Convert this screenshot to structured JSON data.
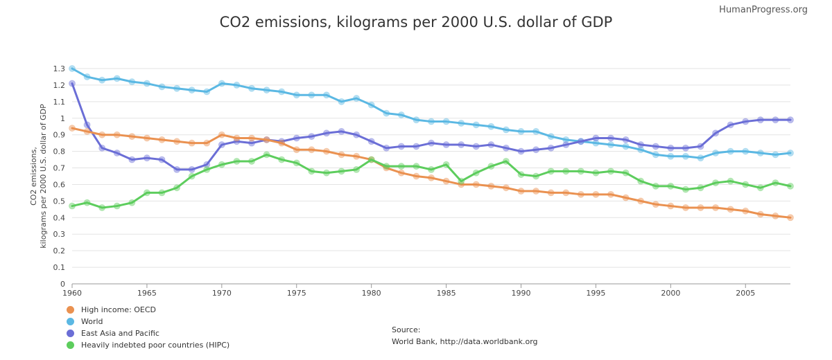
{
  "credit": "HumanProgress.org",
  "source": {
    "label": "Source:",
    "text": "World Bank, http://data.worldbank.org"
  },
  "chart_data": {
    "type": "line",
    "title": "CO2 emissions, kilograms per 2000 U.S. dollar of GDP",
    "ylabel_lines": [
      "CO2 emissions,",
      "kilograms per 2000 U.S. dollar of GDP"
    ],
    "xlabel": "",
    "xlim": [
      1960,
      2008
    ],
    "ylim": [
      0,
      1.3
    ],
    "x_ticks": [
      1960,
      1965,
      1970,
      1975,
      1980,
      1985,
      1990,
      1995,
      2000,
      2005
    ],
    "y_ticks": [
      0,
      0.1,
      0.2,
      0.3,
      0.4,
      0.5,
      0.6,
      0.7,
      0.8,
      0.9,
      1,
      1.1,
      1.2,
      1.3
    ],
    "y_tick_labels": [
      "0",
      "0.1",
      "0.2",
      "0.3",
      "0.4",
      "0.5",
      "0.6",
      "0.7",
      "0.8",
      "0.9",
      "1",
      "1.1",
      "1.2",
      "1.3"
    ],
    "grid": true,
    "legend_position": "bottom-left",
    "x": [
      1960,
      1961,
      1962,
      1963,
      1964,
      1965,
      1966,
      1967,
      1968,
      1969,
      1970,
      1971,
      1972,
      1973,
      1974,
      1975,
      1976,
      1977,
      1978,
      1979,
      1980,
      1981,
      1982,
      1983,
      1984,
      1985,
      1986,
      1987,
      1988,
      1989,
      1990,
      1991,
      1992,
      1993,
      1994,
      1995,
      1996,
      1997,
      1998,
      1999,
      2000,
      2001,
      2002,
      2003,
      2004,
      2005,
      2006,
      2007,
      2008
    ],
    "series": [
      {
        "name": "World",
        "color": "#5bb8e3",
        "values": [
          1.3,
          1.25,
          1.23,
          1.24,
          1.22,
          1.21,
          1.19,
          1.18,
          1.17,
          1.16,
          1.21,
          1.2,
          1.18,
          1.17,
          1.16,
          1.14,
          1.14,
          1.14,
          1.1,
          1.12,
          1.08,
          1.03,
          1.02,
          0.99,
          0.98,
          0.98,
          0.97,
          0.96,
          0.95,
          0.93,
          0.92,
          0.92,
          0.89,
          0.87,
          0.86,
          0.85,
          0.84,
          0.83,
          0.81,
          0.78,
          0.77,
          0.77,
          0.76,
          0.79,
          0.8,
          0.8,
          0.79,
          0.78,
          0.79
        ]
      },
      {
        "name": "East Asia and Pacific",
        "color": "#6b6ed6",
        "values": [
          1.21,
          0.96,
          0.82,
          0.79,
          0.75,
          0.76,
          0.75,
          0.69,
          0.69,
          0.72,
          0.84,
          0.86,
          0.85,
          0.87,
          0.86,
          0.88,
          0.89,
          0.91,
          0.92,
          0.9,
          0.86,
          0.82,
          0.83,
          0.83,
          0.85,
          0.84,
          0.84,
          0.83,
          0.84,
          0.82,
          0.8,
          0.81,
          0.82,
          0.84,
          0.86,
          0.88,
          0.88,
          0.87,
          0.84,
          0.83,
          0.82,
          0.82,
          0.83,
          0.91,
          0.96,
          0.98,
          0.99,
          0.99,
          0.99
        ]
      },
      {
        "name": "High income: OECD",
        "color": "#ea9150",
        "values": [
          0.94,
          0.92,
          0.9,
          0.9,
          0.89,
          0.88,
          0.87,
          0.86,
          0.85,
          0.85,
          0.9,
          0.88,
          0.88,
          0.87,
          0.85,
          0.81,
          0.81,
          0.8,
          0.78,
          0.77,
          0.75,
          0.7,
          0.67,
          0.65,
          0.64,
          0.62,
          0.6,
          0.6,
          0.59,
          0.58,
          0.56,
          0.56,
          0.55,
          0.55,
          0.54,
          0.54,
          0.54,
          0.52,
          0.5,
          0.48,
          0.47,
          0.46,
          0.46,
          0.46,
          0.45,
          0.44,
          0.42,
          0.41,
          0.4
        ]
      },
      {
        "name": "Heavily indebted poor countries (HIPC)",
        "color": "#5dcd5d",
        "values": [
          0.47,
          0.49,
          0.46,
          0.47,
          0.49,
          0.55,
          0.55,
          0.58,
          0.65,
          0.69,
          0.72,
          0.74,
          0.74,
          0.78,
          0.75,
          0.73,
          0.68,
          0.67,
          0.68,
          0.69,
          0.75,
          0.71,
          0.71,
          0.71,
          0.69,
          0.72,
          0.62,
          0.67,
          0.71,
          0.74,
          0.66,
          0.65,
          0.68,
          0.68,
          0.68,
          0.67,
          0.68,
          0.67,
          0.62,
          0.59,
          0.59,
          0.57,
          0.58,
          0.61,
          0.62,
          0.6,
          0.58,
          0.61,
          0.59
        ]
      }
    ],
    "legend": [
      {
        "name": "High income: OECD",
        "color": "#ea9150"
      },
      {
        "name": "World",
        "color": "#5bb8e3"
      },
      {
        "name": "East Asia and Pacific",
        "color": "#6b6ed6"
      },
      {
        "name": "Heavily indebted poor countries (HIPC)",
        "color": "#5dcd5d"
      }
    ]
  }
}
